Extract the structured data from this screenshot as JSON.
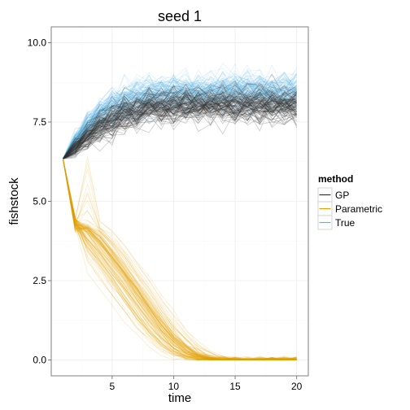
{
  "chart_data": {
    "type": "line",
    "title": "seed 1",
    "xlabel": "time",
    "ylabel": "fishstock",
    "xlim": [
      0.05,
      20.95
    ],
    "ylim": [
      -0.5,
      10.5
    ],
    "x_ticks": [
      5,
      10,
      15,
      20
    ],
    "y_ticks": [
      0.0,
      2.5,
      5.0,
      7.5,
      10.0
    ],
    "y_tick_labels": [
      "0.0",
      "2.5",
      "5.0",
      "7.5",
      "10.0"
    ],
    "grid": true,
    "legend": {
      "title": "method",
      "placement": "right",
      "entries": [
        "GP",
        "Parametric",
        "True"
      ]
    },
    "colors": {
      "GP": "#333333",
      "Parametric": "#E69F00",
      "True": "#56B4E9",
      "panel_border": "#7f7f7f",
      "grid_major": "#ececec",
      "grid_minor": "#f7f7f7"
    },
    "time": [
      1,
      2,
      3,
      4,
      5,
      6,
      7,
      8,
      9,
      10,
      11,
      12,
      13,
      14,
      15,
      16,
      17,
      18,
      19,
      20
    ],
    "initial_value": 6.34,
    "series": [
      {
        "name": "GP",
        "replicates": 100,
        "mean": [
          6.34,
          6.7,
          7.05,
          7.35,
          7.6,
          7.75,
          7.85,
          7.95,
          8.0,
          8.0,
          8.05,
          8.05,
          8.05,
          8.05,
          8.05,
          8.05,
          8.05,
          8.05,
          8.05,
          8.05
        ],
        "spread": [
          0.0,
          0.3,
          0.4,
          0.45,
          0.5,
          0.5,
          0.5,
          0.5,
          0.5,
          0.5,
          0.5,
          0.5,
          0.5,
          0.5,
          0.5,
          0.5,
          0.5,
          0.5,
          0.5,
          0.5
        ]
      },
      {
        "name": "Parametric",
        "replicates": 100,
        "mean": [
          6.34,
          4.3,
          4.05,
          3.6,
          3.1,
          2.55,
          2.0,
          1.45,
          0.95,
          0.55,
          0.25,
          0.1,
          0.03,
          0.0,
          0.0,
          0.0,
          0.0,
          0.0,
          0.0,
          0.0
        ],
        "spread": [
          0.0,
          0.2,
          0.35,
          0.5,
          0.6,
          0.7,
          0.75,
          0.75,
          0.7,
          0.6,
          0.45,
          0.3,
          0.15,
          0.05,
          0.0,
          0.0,
          0.0,
          0.0,
          0.0,
          0.0
        ]
      },
      {
        "name": "True",
        "replicates": 100,
        "mean": [
          6.34,
          6.9,
          7.4,
          7.75,
          8.0,
          8.2,
          8.3,
          8.4,
          8.4,
          8.45,
          8.45,
          8.45,
          8.5,
          8.5,
          8.5,
          8.5,
          8.5,
          8.5,
          8.5,
          8.5
        ],
        "spread": [
          0.0,
          0.3,
          0.4,
          0.45,
          0.5,
          0.5,
          0.5,
          0.5,
          0.5,
          0.5,
          0.5,
          0.5,
          0.5,
          0.5,
          0.5,
          0.5,
          0.5,
          0.5,
          0.5,
          0.5
        ]
      }
    ]
  }
}
